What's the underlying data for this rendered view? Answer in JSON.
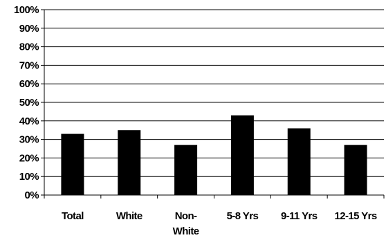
{
  "chart_data": {
    "type": "bar",
    "categories": [
      "Total",
      "White",
      "Non-\nWhite",
      "5-8 Yrs",
      "9-11 Yrs",
      "12-15 Yrs"
    ],
    "values": [
      33,
      35,
      27,
      43,
      36,
      27
    ],
    "y_ticks": [
      "0%",
      "10%",
      "20%",
      "30%",
      "40%",
      "50%",
      "60%",
      "70%",
      "80%",
      "90%",
      "100%"
    ],
    "ylim": [
      0,
      100
    ],
    "grid": true,
    "legend": "none",
    "title": "",
    "xlabel": "",
    "ylabel": "",
    "bar_color": "#000000",
    "grid_color": "#000000"
  }
}
